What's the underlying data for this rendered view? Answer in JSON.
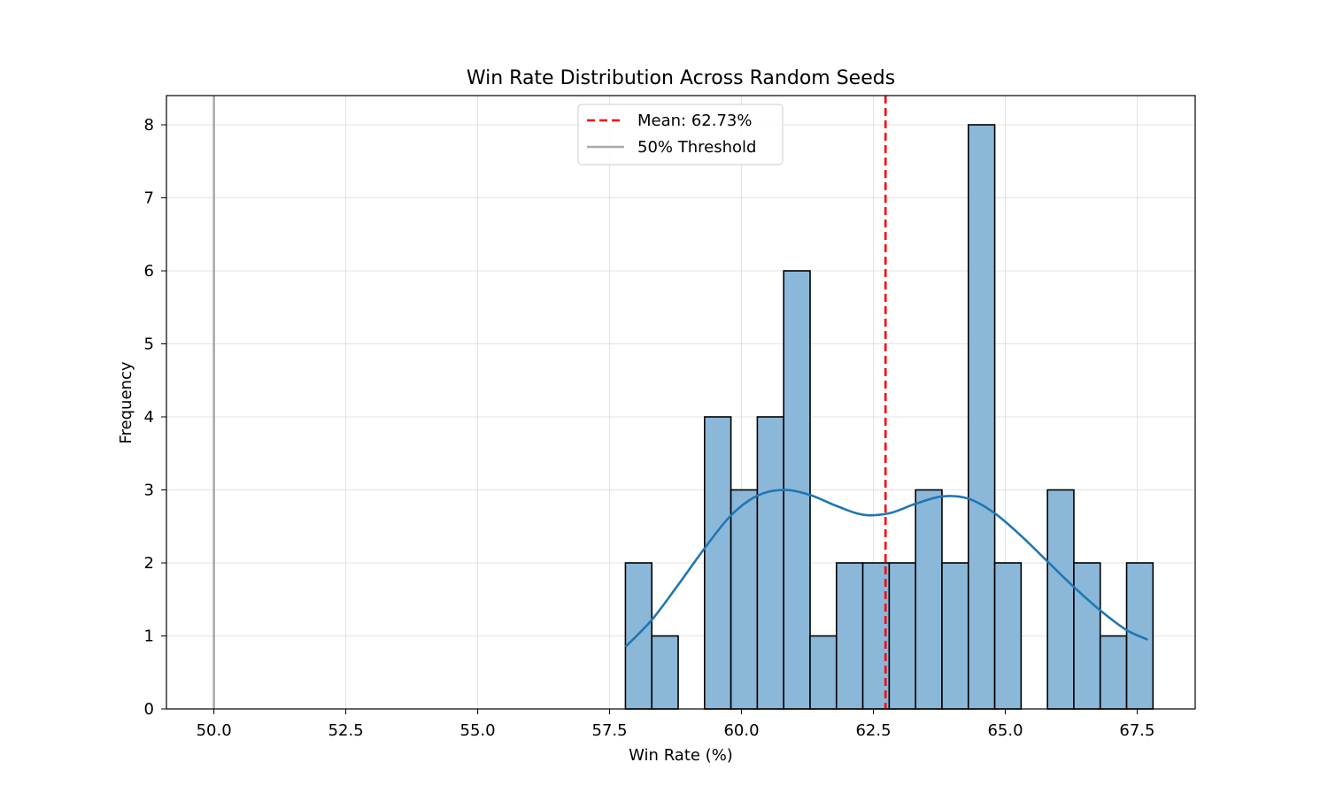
{
  "chart_data": {
    "type": "bar",
    "title": "Win Rate Distribution Across Random Seeds",
    "xlabel": "Win Rate (%)",
    "ylabel": "Frequency",
    "xlim": [
      49.1,
      68.6
    ],
    "ylim": [
      0,
      8.4
    ],
    "xticks": [
      50.0,
      52.5,
      55.0,
      57.5,
      60.0,
      62.5,
      65.0,
      67.5
    ],
    "xtick_labels": [
      "50.0",
      "52.5",
      "55.0",
      "57.5",
      "60.0",
      "62.5",
      "65.0",
      "67.5"
    ],
    "yticks": [
      0,
      1,
      2,
      3,
      4,
      5,
      6,
      7,
      8
    ],
    "ytick_labels": [
      "0",
      "1",
      "2",
      "3",
      "4",
      "5",
      "6",
      "7",
      "8"
    ],
    "grid": true,
    "histogram": {
      "bin_start": 57.8,
      "bin_width": 0.5,
      "counts": [
        2,
        1,
        0,
        4,
        3,
        4,
        6,
        1,
        2,
        2,
        2,
        3,
        2,
        8,
        2,
        0,
        3,
        2,
        1,
        2
      ],
      "fill_color": "#8bb8d9",
      "edge_color": "#000000"
    },
    "kde": {
      "color": "#1f77b4",
      "x": [
        57.8,
        58.3,
        58.8,
        59.3,
        59.8,
        60.3,
        60.8,
        61.3,
        61.8,
        62.3,
        62.8,
        63.3,
        63.8,
        64.3,
        64.8,
        65.3,
        65.8,
        66.3,
        66.8,
        67.3,
        67.7
      ],
      "y": [
        0.85,
        1.22,
        1.7,
        2.2,
        2.65,
        2.92,
        3.0,
        2.93,
        2.78,
        2.66,
        2.68,
        2.81,
        2.91,
        2.88,
        2.68,
        2.37,
        2.02,
        1.67,
        1.35,
        1.08,
        0.95
      ]
    },
    "mean_line": {
      "value": 62.73,
      "color": "#ff0000",
      "style": "dashed"
    },
    "threshold_line": {
      "value": 50.0,
      "color": "#aaaaaa",
      "style": "solid"
    },
    "legend": {
      "placement": "top-center",
      "entries": [
        {
          "label": "Mean: 62.73%",
          "color": "#ff0000",
          "style": "dashed"
        },
        {
          "label": "50% Threshold",
          "color": "#aaaaaa",
          "style": "solid"
        }
      ]
    }
  }
}
